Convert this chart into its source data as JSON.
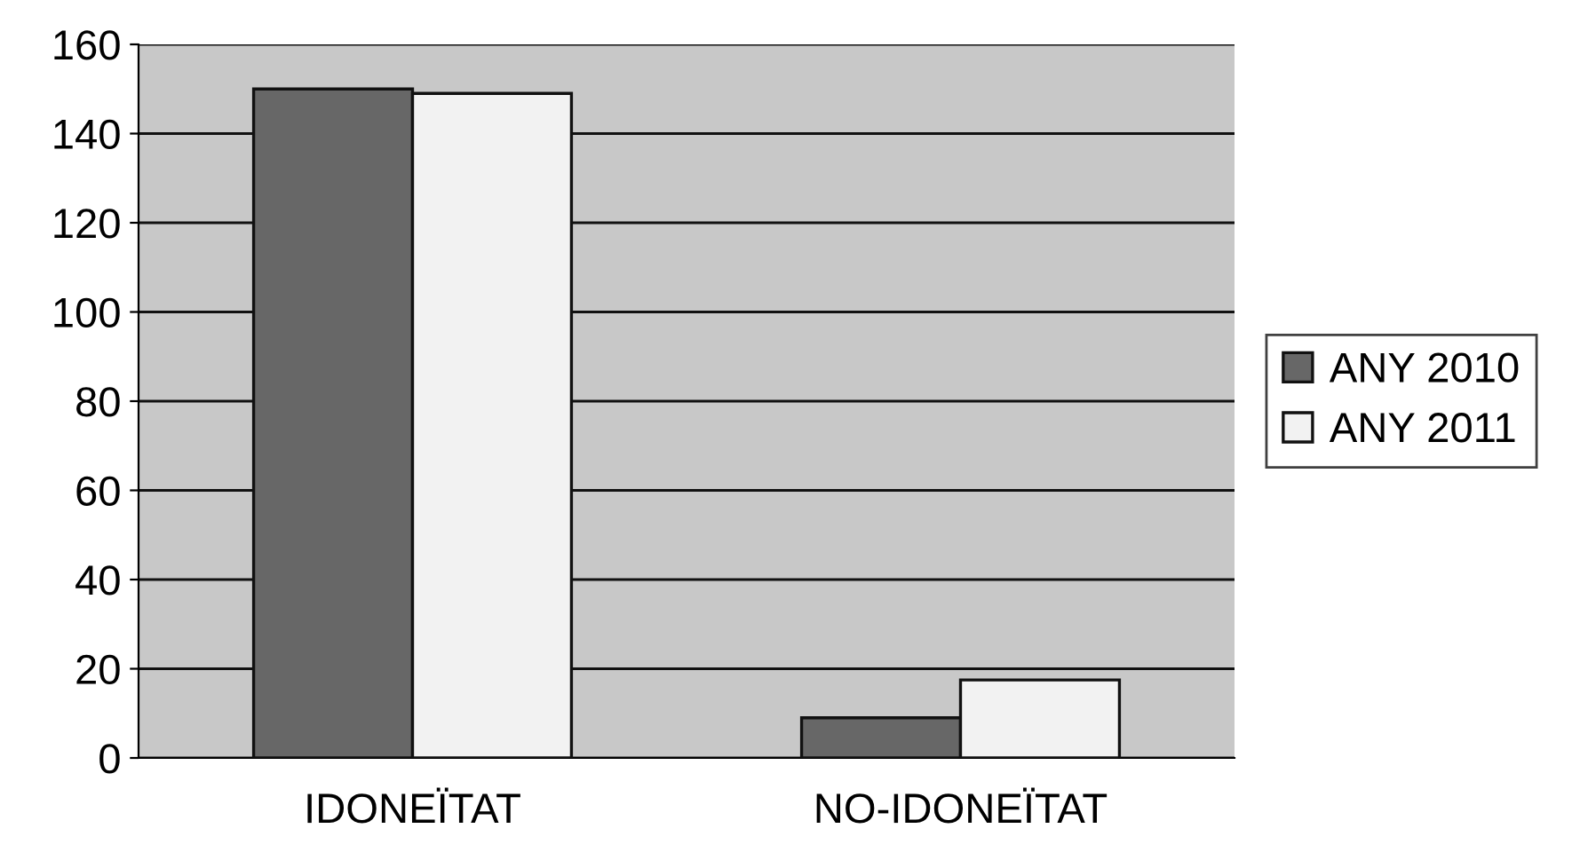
{
  "chart_data": {
    "type": "bar",
    "categories": [
      "IDONEÏTAT",
      "NO-IDONEÏTAT"
    ],
    "series": [
      {
        "name": "ANY 2010",
        "color": "#676767",
        "values": [
          150,
          9
        ]
      },
      {
        "name": "ANY 2011",
        "color": "#f2f2f2",
        "values": [
          149,
          17.5
        ]
      }
    ],
    "ylim": [
      0,
      160
    ],
    "yticks": [
      0,
      20,
      40,
      60,
      80,
      100,
      120,
      140,
      160
    ],
    "grid": "y",
    "legend": "right"
  }
}
